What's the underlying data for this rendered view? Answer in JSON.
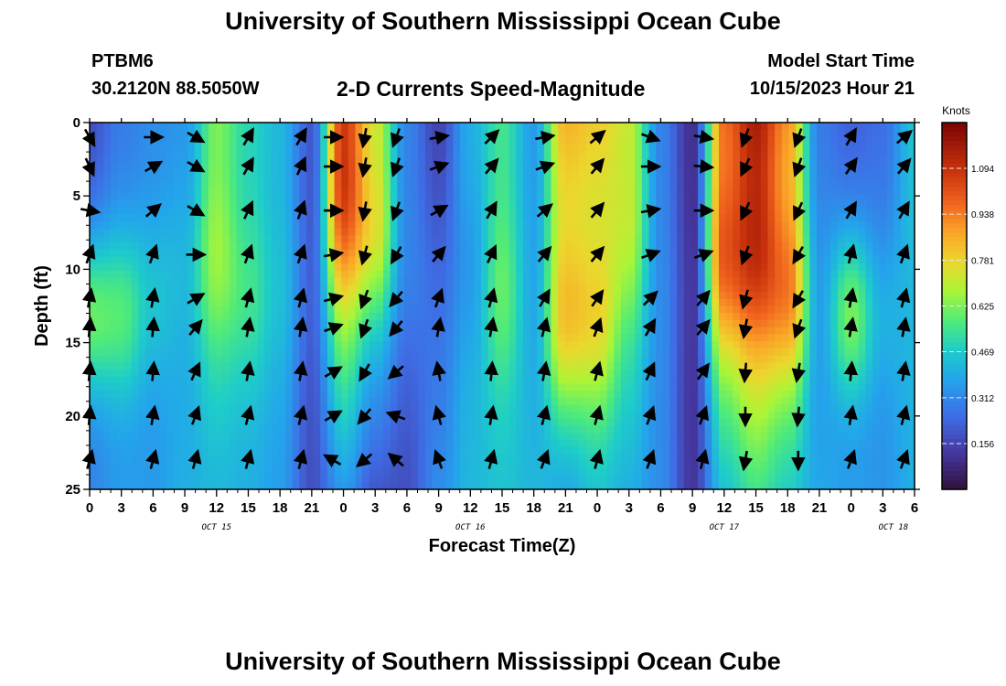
{
  "header": {
    "title": "University of Southern Mississippi Ocean Cube",
    "station_id": "PTBM6",
    "station_coords": "30.2120N  88.5050W",
    "plot_title": "2-D Currents Speed-Magnitude",
    "model_start_label": "Model Start Time",
    "model_start_value": "10/15/2023 Hour 21"
  },
  "footer": {
    "title": "University of Southern Mississippi Ocean Cube"
  },
  "chart_data": {
    "type": "heatmap",
    "title": "2-D Currents Speed-Magnitude",
    "xlabel": "Forecast Time(Z)",
    "ylabel": "Depth (ft)",
    "x_start_hour": 0,
    "x_end_hour": 78,
    "x_tick_labels": [
      "0",
      "3",
      "6",
      "9",
      "12",
      "15",
      "18",
      "21",
      "0",
      "3",
      "6",
      "9",
      "12",
      "15",
      "18",
      "21",
      "0",
      "3",
      "6",
      "9",
      "12",
      "15",
      "18",
      "21",
      "0",
      "3",
      "6"
    ],
    "date_labels": [
      {
        "hour": 12,
        "label": "OCT 15"
      },
      {
        "hour": 36,
        "label": "OCT 16"
      },
      {
        "hour": 60,
        "label": "OCT 17"
      },
      {
        "hour": 76,
        "label": "OCT 18"
      }
    ],
    "y_ticks": [
      0,
      5,
      10,
      15,
      20,
      25
    ],
    "ylim": [
      0,
      25
    ],
    "colorbar": {
      "label": "Knots",
      "min": 0.0,
      "max": 1.25,
      "tick_values": [
        1.094,
        0.938,
        0.781,
        0.625,
        0.469,
        0.312,
        0.156
      ],
      "tick_labels": [
        "1.094",
        "0.938",
        "0.781",
        "0.625",
        "0.469",
        "0.312",
        "0.156"
      ]
    },
    "speed_columns_knots": [
      {
        "hour": 0,
        "surface": 0.18,
        "bottom": 0.3,
        "core_depth": 13,
        "core": 0.6
      },
      {
        "hour": 3,
        "surface": 0.28,
        "bottom": 0.35,
        "core_depth": 13,
        "core": 0.58
      },
      {
        "hour": 6,
        "surface": 0.32,
        "bottom": 0.35,
        "core_depth": 12,
        "core": 0.45
      },
      {
        "hour": 9,
        "surface": 0.34,
        "bottom": 0.4,
        "core_depth": 10,
        "core": 0.42
      },
      {
        "hour": 12,
        "surface": 0.62,
        "bottom": 0.42,
        "core_depth": 10,
        "core": 0.66
      },
      {
        "hour": 15,
        "surface": 0.5,
        "bottom": 0.4,
        "core_depth": 12,
        "core": 0.55
      },
      {
        "hour": 18,
        "surface": 0.42,
        "bottom": 0.36,
        "core_depth": 12,
        "core": 0.44
      },
      {
        "hour": 21,
        "surface": 0.2,
        "bottom": 0.18,
        "core_depth": 12,
        "core": 0.22
      },
      {
        "hour": 24,
        "surface": 1.0,
        "bottom": 0.35,
        "core_depth": 6,
        "core": 1.05
      },
      {
        "hour": 27,
        "surface": 0.7,
        "bottom": 0.2,
        "core_depth": 8,
        "core": 0.75
      },
      {
        "hour": 30,
        "surface": 0.3,
        "bottom": 0.18,
        "core_depth": 10,
        "core": 0.3
      },
      {
        "hour": 33,
        "surface": 0.15,
        "bottom": 0.32,
        "core_depth": 12,
        "core": 0.25
      },
      {
        "hour": 36,
        "surface": 0.4,
        "bottom": 0.42,
        "core_depth": 10,
        "core": 0.35
      },
      {
        "hour": 39,
        "surface": 0.55,
        "bottom": 0.45,
        "core_depth": 12,
        "core": 0.6
      },
      {
        "hour": 42,
        "surface": 0.35,
        "bottom": 0.42,
        "core_depth": 12,
        "core": 0.38
      },
      {
        "hour": 45,
        "surface": 0.85,
        "bottom": 0.38,
        "core_depth": 14,
        "core": 0.82
      },
      {
        "hour": 48,
        "surface": 0.8,
        "bottom": 0.45,
        "core_depth": 14,
        "core": 0.78
      },
      {
        "hour": 51,
        "surface": 0.7,
        "bottom": 0.4,
        "core_depth": 8,
        "core": 0.7
      },
      {
        "hour": 54,
        "surface": 0.3,
        "bottom": 0.32,
        "core_depth": 12,
        "core": 0.32
      },
      {
        "hour": 57,
        "surface": 0.1,
        "bottom": 0.12,
        "core_depth": 12,
        "core": 0.12
      },
      {
        "hour": 60,
        "surface": 0.95,
        "bottom": 0.45,
        "core_depth": 10,
        "core": 1.0
      },
      {
        "hour": 63,
        "surface": 1.15,
        "bottom": 0.55,
        "core_depth": 10,
        "core": 1.1
      },
      {
        "hour": 66,
        "surface": 0.9,
        "bottom": 0.48,
        "core_depth": 12,
        "core": 0.95
      },
      {
        "hour": 69,
        "surface": 0.28,
        "bottom": 0.38,
        "core_depth": 12,
        "core": 0.36
      },
      {
        "hour": 72,
        "surface": 0.22,
        "bottom": 0.35,
        "core_depth": 13,
        "core": 0.62
      },
      {
        "hour": 75,
        "surface": 0.25,
        "bottom": 0.34,
        "core_depth": 13,
        "core": 0.4
      },
      {
        "hour": 78,
        "surface": 0.45,
        "bottom": 0.4,
        "core_depth": 12,
        "core": 0.42
      }
    ],
    "vector_depths_ft": [
      1,
      3,
      6,
      9,
      12,
      14,
      17,
      20,
      23
    ],
    "direction_columns_deg": [
      {
        "hour": 0,
        "degrees": [
          150,
          155,
          100,
          20,
          10,
          5,
          5,
          5,
          15
        ]
      },
      {
        "hour": 6,
        "degrees": [
          90,
          60,
          50,
          20,
          10,
          5,
          5,
          10,
          15
        ]
      },
      {
        "hour": 10,
        "degrees": [
          120,
          120,
          120,
          90,
          60,
          40,
          25,
          20,
          15
        ]
      },
      {
        "hour": 15,
        "degrees": [
          30,
          30,
          25,
          20,
          15,
          10,
          10,
          15,
          15
        ]
      },
      {
        "hour": 20,
        "degrees": [
          30,
          25,
          20,
          20,
          15,
          10,
          10,
          15,
          15
        ]
      },
      {
        "hour": 23,
        "degrees": [
          90,
          90,
          90,
          80,
          75,
          70,
          60,
          60,
          300
        ]
      },
      {
        "hour": 26,
        "degrees": [
          190,
          190,
          190,
          195,
          200,
          200,
          210,
          220,
          230
        ]
      },
      {
        "hour": 29,
        "degrees": [
          200,
          200,
          200,
          210,
          220,
          220,
          230,
          290,
          310
        ]
      },
      {
        "hour": 33,
        "degrees": [
          80,
          70,
          60,
          40,
          20,
          10,
          350,
          345,
          340
        ]
      },
      {
        "hour": 38,
        "degrees": [
          45,
          40,
          30,
          25,
          15,
          10,
          5,
          10,
          15
        ]
      },
      {
        "hour": 43,
        "degrees": [
          80,
          70,
          50,
          40,
          30,
          15,
          10,
          15,
          20
        ]
      },
      {
        "hour": 48,
        "degrees": [
          50,
          40,
          40,
          40,
          35,
          20,
          15,
          15,
          15
        ]
      },
      {
        "hour": 53,
        "degrees": [
          110,
          90,
          80,
          70,
          45,
          30,
          25,
          20,
          20
        ]
      },
      {
        "hour": 58,
        "degrees": [
          100,
          95,
          90,
          70,
          40,
          40,
          35,
          20,
          15
        ]
      },
      {
        "hour": 62,
        "degrees": [
          200,
          205,
          205,
          200,
          195,
          190,
          185,
          180,
          190
        ]
      },
      {
        "hour": 67,
        "degrees": [
          200,
          200,
          205,
          210,
          210,
          200,
          190,
          185,
          180
        ]
      },
      {
        "hour": 72,
        "degrees": [
          30,
          35,
          30,
          15,
          10,
          10,
          5,
          10,
          20
        ]
      },
      {
        "hour": 77,
        "degrees": [
          50,
          40,
          30,
          20,
          15,
          10,
          10,
          15,
          20
        ]
      }
    ]
  }
}
